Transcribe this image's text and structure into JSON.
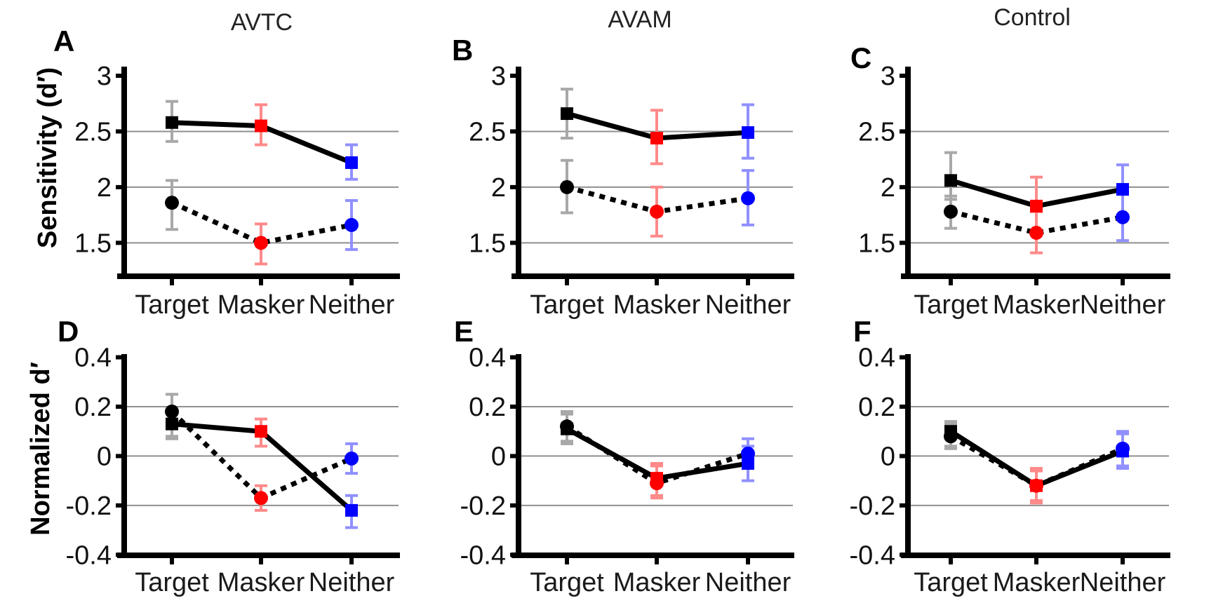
{
  "figure": {
    "background": "#ffffff",
    "grid_color": "#8f8f8f",
    "axis_color": "#000000",
    "line_color": "#000000"
  },
  "colors": {
    "points": [
      "#000000",
      "#ff0000",
      "#0000ff"
    ],
    "error_bars": [
      "#a8a8a8",
      "#ff8a8a",
      "#9090ff"
    ]
  },
  "chart_data": [
    {
      "id": "A",
      "letter": "A",
      "type": "line",
      "row": 0,
      "col": 0,
      "title": "AVTC",
      "ylabel": "Sensitivity (d′)",
      "categories": [
        "Target",
        "Masker",
        "Neither"
      ],
      "ylim": [
        1.2,
        3.082
      ],
      "grid": "on",
      "legend": "none",
      "yticks": [
        {
          "v": 3,
          "label": "3"
        },
        {
          "v": 2.5,
          "label": "2.5"
        },
        {
          "v": 2,
          "label": "2"
        },
        {
          "v": 1.5,
          "label": "1.5"
        }
      ],
      "gridlines": [
        2.5,
        2,
        1.5
      ],
      "series": [
        {
          "name": "solid-squares",
          "line": "solid",
          "marker": "square",
          "values": [
            2.58,
            2.55,
            2.22
          ],
          "err_lo": [
            2.41,
            2.38,
            2.07
          ],
          "err_hi": [
            2.77,
            2.74,
            2.38
          ]
        },
        {
          "name": "dashed-circles",
          "line": "dashed",
          "marker": "circle",
          "values": [
            1.86,
            1.5,
            1.66
          ],
          "err_lo": [
            1.62,
            1.31,
            1.44
          ],
          "err_hi": [
            2.06,
            1.67,
            1.88
          ]
        }
      ]
    },
    {
      "id": "B",
      "letter": "B",
      "type": "line",
      "row": 0,
      "col": 1,
      "title": "AVAM",
      "ylabel": "",
      "categories": [
        "Target",
        "Masker",
        "Neither"
      ],
      "ylim": [
        1.2,
        3.082
      ],
      "grid": "on",
      "legend": "none",
      "yticks": [
        {
          "v": 3,
          "label": "3"
        },
        {
          "v": 2.5,
          "label": "2.5"
        },
        {
          "v": 2,
          "label": "2"
        },
        {
          "v": 1.5,
          "label": "1.5"
        }
      ],
      "gridlines": [
        2.5,
        2,
        1.5
      ],
      "series": [
        {
          "name": "solid-squares",
          "line": "solid",
          "marker": "square",
          "values": [
            2.66,
            2.44,
            2.49
          ],
          "err_lo": [
            2.44,
            2.21,
            2.26
          ],
          "err_hi": [
            2.88,
            2.69,
            2.74
          ]
        },
        {
          "name": "dashed-circles",
          "line": "dashed",
          "marker": "circle",
          "values": [
            2.0,
            1.78,
            1.9
          ],
          "err_lo": [
            1.77,
            1.56,
            1.66
          ],
          "err_hi": [
            2.24,
            2.0,
            2.15
          ]
        }
      ]
    },
    {
      "id": "C",
      "letter": "C",
      "type": "line",
      "row": 0,
      "col": 2,
      "title": "Control",
      "ylabel": "",
      "categories": [
        "Target",
        "Masker",
        "Neither"
      ],
      "ylim": [
        1.2,
        3.082
      ],
      "grid": "on",
      "legend": "none",
      "yticks": [
        {
          "v": 3,
          "label": "3"
        },
        {
          "v": 2.5,
          "label": "2.5"
        },
        {
          "v": 2,
          "label": "2"
        },
        {
          "v": 1.5,
          "label": "1.5"
        }
      ],
      "gridlines": [
        2.5,
        2,
        1.5
      ],
      "series": [
        {
          "name": "solid-squares",
          "line": "solid",
          "marker": "square",
          "values": [
            2.06,
            1.83,
            1.98
          ],
          "err_lo": [
            1.89,
            1.59,
            1.75
          ],
          "err_hi": [
            2.31,
            2.09,
            2.2
          ]
        },
        {
          "name": "dashed-circles",
          "line": "dashed",
          "marker": "circle",
          "values": [
            1.78,
            1.59,
            1.73
          ],
          "err_lo": [
            1.63,
            1.41,
            1.52
          ],
          "err_hi": [
            1.92,
            1.78,
            1.95
          ]
        }
      ]
    },
    {
      "id": "D",
      "letter": "D",
      "type": "line",
      "row": 1,
      "col": 0,
      "title": "",
      "ylabel": "Normalized d′",
      "categories": [
        "Target",
        "Masker",
        "Neither"
      ],
      "ylim": [
        -0.402,
        0.413
      ],
      "grid": "on",
      "legend": "none",
      "yticks": [
        {
          "v": 0.4,
          "label": "0.4"
        },
        {
          "v": 0.2,
          "label": "0.2"
        },
        {
          "v": 0,
          "label": "0"
        },
        {
          "v": -0.2,
          "label": "-0.2"
        },
        {
          "v": -0.4,
          "label": "-0.4"
        }
      ],
      "gridlines": [
        0.2,
        0,
        -0.2
      ],
      "series": [
        {
          "name": "solid-squares",
          "line": "solid",
          "marker": "square",
          "values": [
            0.13,
            0.1,
            -0.22
          ],
          "err_lo": [
            0.07,
            0.04,
            -0.29
          ],
          "err_hi": [
            0.19,
            0.15,
            -0.16
          ]
        },
        {
          "name": "dashed-circles",
          "line": "dashed",
          "marker": "circle",
          "values": [
            0.18,
            -0.17,
            -0.01
          ],
          "err_lo": [
            0.08,
            -0.22,
            -0.07
          ],
          "err_hi": [
            0.25,
            -0.12,
            0.05
          ]
        }
      ]
    },
    {
      "id": "E",
      "letter": "E",
      "type": "line",
      "row": 1,
      "col": 1,
      "title": "",
      "ylabel": "",
      "categories": [
        "Target",
        "Masker",
        "Neither"
      ],
      "ylim": [
        -0.402,
        0.413
      ],
      "grid": "on",
      "legend": "none",
      "yticks": [
        {
          "v": 0.4,
          "label": "0.4"
        },
        {
          "v": 0.2,
          "label": "0.2"
        },
        {
          "v": 0,
          "label": "0"
        },
        {
          "v": -0.2,
          "label": "-0.2"
        },
        {
          "v": -0.4,
          "label": "-0.4"
        }
      ],
      "gridlines": [
        0.2,
        0,
        -0.2
      ],
      "series": [
        {
          "name": "solid-squares",
          "line": "solid",
          "marker": "square",
          "values": [
            0.11,
            -0.09,
            -0.03
          ],
          "err_lo": [
            0.05,
            -0.16,
            -0.1
          ],
          "err_hi": [
            0.17,
            -0.03,
            0.04
          ]
        },
        {
          "name": "dashed-circles",
          "line": "dashed",
          "marker": "circle",
          "values": [
            0.12,
            -0.11,
            0.01
          ],
          "err_lo": [
            0.06,
            -0.17,
            -0.05
          ],
          "err_hi": [
            0.18,
            -0.04,
            0.07
          ]
        }
      ]
    },
    {
      "id": "F",
      "letter": "F",
      "type": "line",
      "row": 1,
      "col": 2,
      "title": "",
      "ylabel": "",
      "categories": [
        "Target",
        "Masker",
        "Neither"
      ],
      "ylim": [
        -0.402,
        0.413
      ],
      "grid": "on",
      "legend": "none",
      "yticks": [
        {
          "v": 0.4,
          "label": "0.4"
        },
        {
          "v": 0.2,
          "label": "0.2"
        },
        {
          "v": 0,
          "label": "0"
        },
        {
          "v": -0.2,
          "label": "-0.2"
        },
        {
          "v": -0.4,
          "label": "-0.4"
        }
      ],
      "gridlines": [
        0.2,
        0,
        -0.2
      ],
      "series": [
        {
          "name": "solid-squares",
          "line": "solid",
          "marker": "square",
          "values": [
            0.1,
            -0.12,
            0.02
          ],
          "err_lo": [
            0.04,
            -0.19,
            -0.05
          ],
          "err_hi": [
            0.14,
            -0.06,
            0.09
          ]
        },
        {
          "name": "dashed-circles",
          "line": "dashed",
          "marker": "circle",
          "values": [
            0.08,
            -0.12,
            0.03
          ],
          "err_lo": [
            0.03,
            -0.18,
            -0.04
          ],
          "err_hi": [
            0.13,
            -0.05,
            0.1
          ]
        }
      ]
    }
  ]
}
